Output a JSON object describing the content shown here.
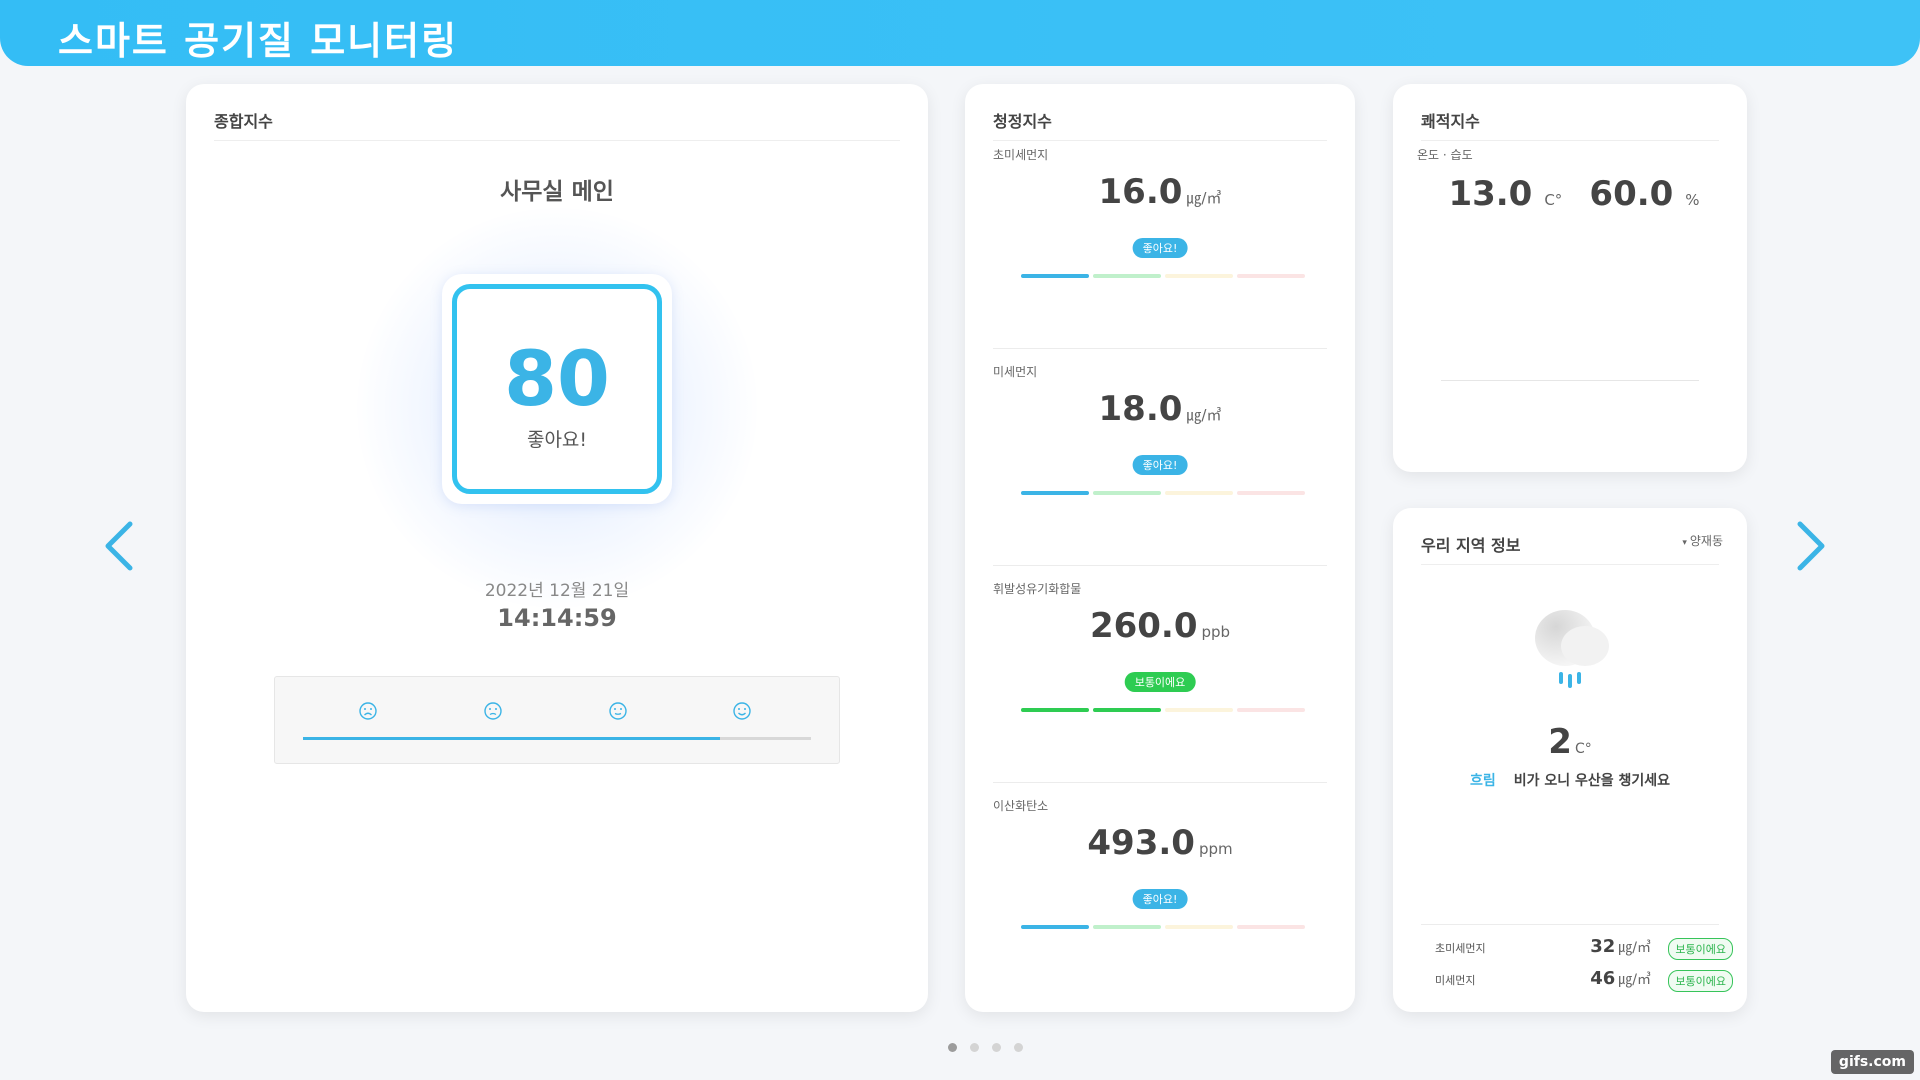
{
  "header": {
    "title": "스마트 공기질 모니터링"
  },
  "total_card": {
    "title": "종합지수",
    "location": "사무실 메인",
    "score": "80",
    "status": "좋아요!",
    "date": "2022년 12월 21일",
    "time": "14:14:59",
    "face_icons": [
      "very-bad-face-icon",
      "bad-face-icon",
      "normal-face-icon",
      "good-face-icon"
    ],
    "progress_fraction": 0.82
  },
  "clean_card": {
    "title": "청정지수",
    "metrics": [
      {
        "label": "초미세먼지",
        "value": "16.0",
        "unit": "㎍/㎥",
        "badge": "좋아요!",
        "badge_color": "blue",
        "level": 1
      },
      {
        "label": "미세먼지",
        "value": "18.0",
        "unit": "㎍/㎥",
        "badge": "좋아요!",
        "badge_color": "blue",
        "level": 1
      },
      {
        "label": "휘발성유기화합물",
        "value": "260.0",
        "unit": "ppb",
        "badge": "보통이에요",
        "badge_color": "green",
        "level": 2
      },
      {
        "label": "이산화탄소",
        "value": "493.0",
        "unit": "ppm",
        "badge": "좋아요!",
        "badge_color": "blue",
        "level": 1
      }
    ]
  },
  "comfort_card": {
    "title": "쾌적지수",
    "sub_label": "온도 · 습도",
    "temperature": "13.0",
    "temperature_unit": "C°",
    "humidity": "60.0",
    "humidity_unit": "%"
  },
  "region_card": {
    "title": "우리 지역 정보",
    "location": "양재동",
    "weather_icon": "cloud-rain-icon",
    "temperature": "2",
    "temperature_unit": "C°",
    "condition": "흐림",
    "message": "비가 오니 우산을 챙기세요",
    "dust": [
      {
        "label": "초미세먼지",
        "value": "32",
        "unit": "㎍/㎥",
        "badge": "보통이에요"
      },
      {
        "label": "미세먼지",
        "value": "46",
        "unit": "㎍/㎥",
        "badge": "보통이에요"
      }
    ]
  },
  "nav": {
    "prev_icon": "chevron-left-icon",
    "next_icon": "chevron-right-icon",
    "page_count": 4,
    "active_page": 1
  },
  "colors": {
    "accent": "#3bb4e6",
    "header": "#34bdf5",
    "good": "#3bb4e6",
    "normal": "#2ecc52",
    "bad": "#f6d98a",
    "very_bad": "#f2a7a7"
  },
  "watermark": "gifs.com"
}
